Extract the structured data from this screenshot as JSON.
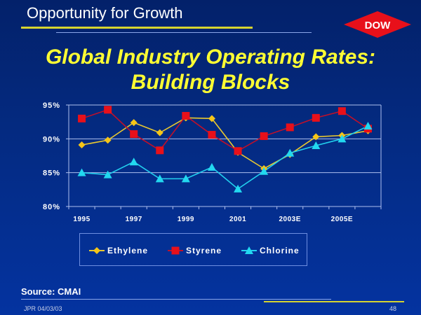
{
  "header": {
    "section_title": "Opportunity for Growth",
    "logo_text": "DOW",
    "main_title_line1": "Global Industry Operating Rates:",
    "main_title_line2": "Building Blocks"
  },
  "footer": {
    "source": "Source: CMAI",
    "left": "JPR 04/03/03",
    "page": "48"
  },
  "colors": {
    "ethylene": "#f5c518",
    "styrene": "#e8101a",
    "chlorine": "#22d8f0",
    "title": "#ffff33",
    "accent_rule": "#d6d430"
  },
  "chart_data": {
    "type": "line",
    "title": "Global Industry Operating Rates: Building Blocks",
    "xlabel": "",
    "ylabel": "",
    "categories": [
      "1995",
      "1996",
      "1997",
      "1998",
      "1999",
      "2000",
      "2001",
      "2002",
      "2003E",
      "2004E",
      "2005E",
      "2006E"
    ],
    "tick_labels": [
      "1995",
      "",
      "1997",
      "",
      "1999",
      "",
      "2001",
      "",
      "2003E",
      "",
      "2005E",
      ""
    ],
    "y_ticks": [
      "80%",
      "85%",
      "90%",
      "95%"
    ],
    "ylim": [
      80,
      95
    ],
    "grid": true,
    "legend_position": "bottom",
    "series": [
      {
        "name": "Ethylene",
        "marker": "diamond",
        "values": [
          89.1,
          89.8,
          92.4,
          90.9,
          93.1,
          93.0,
          88.0,
          85.6,
          87.7,
          90.3,
          90.5,
          91.2
        ]
      },
      {
        "name": "Styrene",
        "marker": "square",
        "values": [
          93.0,
          94.3,
          90.7,
          88.3,
          93.4,
          90.6,
          88.2,
          90.4,
          91.7,
          93.1,
          94.1,
          91.5
        ]
      },
      {
        "name": "Chlorine",
        "marker": "triangle",
        "values": [
          85.0,
          84.7,
          86.6,
          84.1,
          84.1,
          85.8,
          82.6,
          85.2,
          87.9,
          89.0,
          90.0,
          91.9
        ]
      }
    ]
  }
}
